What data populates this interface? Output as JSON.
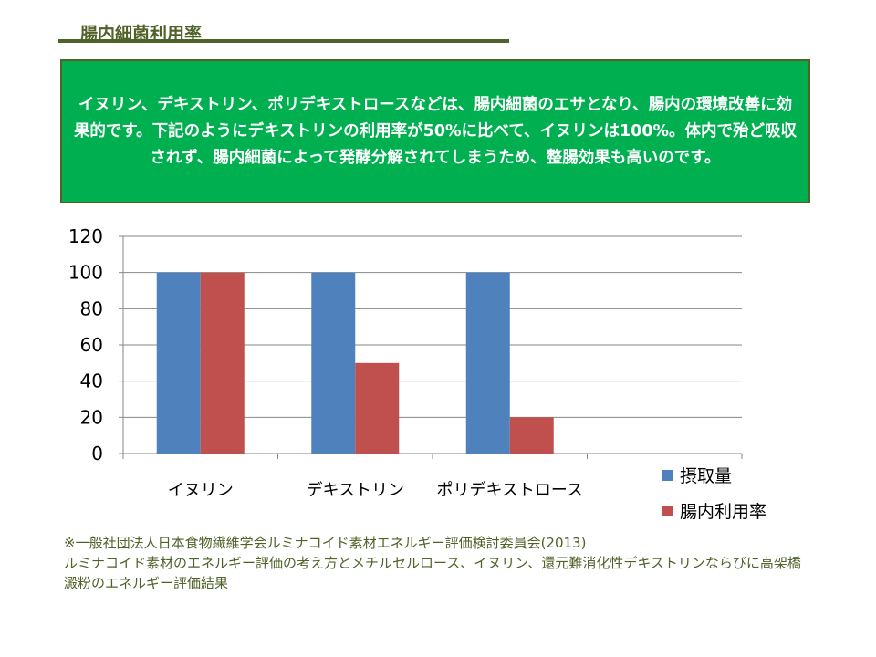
{
  "header": {
    "title": "腸内細菌利用率"
  },
  "summary": "イヌリン、デキストリン、ポリデキストロースなどは、腸内細菌のエサとなり、腸内の環境改善に効果的です。下記のようにデキストリンの利用率が50%に比べて、イヌリンは100%。体内で殆ど吸収されず、腸内細菌によって発酵分解されてしまうため、整腸効果も高いのです。",
  "chart_data": {
    "type": "bar",
    "categories": [
      "イヌリン",
      "デキストリン",
      "ポリデキストロース",
      ""
    ],
    "series": [
      {
        "name": "摂取量",
        "color": "#4f81bd",
        "values": [
          100,
          100,
          100,
          null
        ]
      },
      {
        "name": "腸内利用率",
        "color": "#c0504d",
        "values": [
          100,
          50,
          20,
          null
        ]
      }
    ],
    "ylim": [
      0,
      120
    ],
    "yticks": [
      "0",
      "20",
      "40",
      "60",
      "80",
      "100",
      "120"
    ],
    "grid": true,
    "legend": "right"
  },
  "footnote": {
    "line1": "※一般社団法人日本食物繊維学会ルミナコイド素材エネルギー評価検討委員会(2013)",
    "line2": "ルミナコイド素材のエネルギー評価の考え方とメチルセルロース、イヌリン、還元難消化性デキストリンならびに高架橋澱粉のエネルギー評価結果"
  }
}
